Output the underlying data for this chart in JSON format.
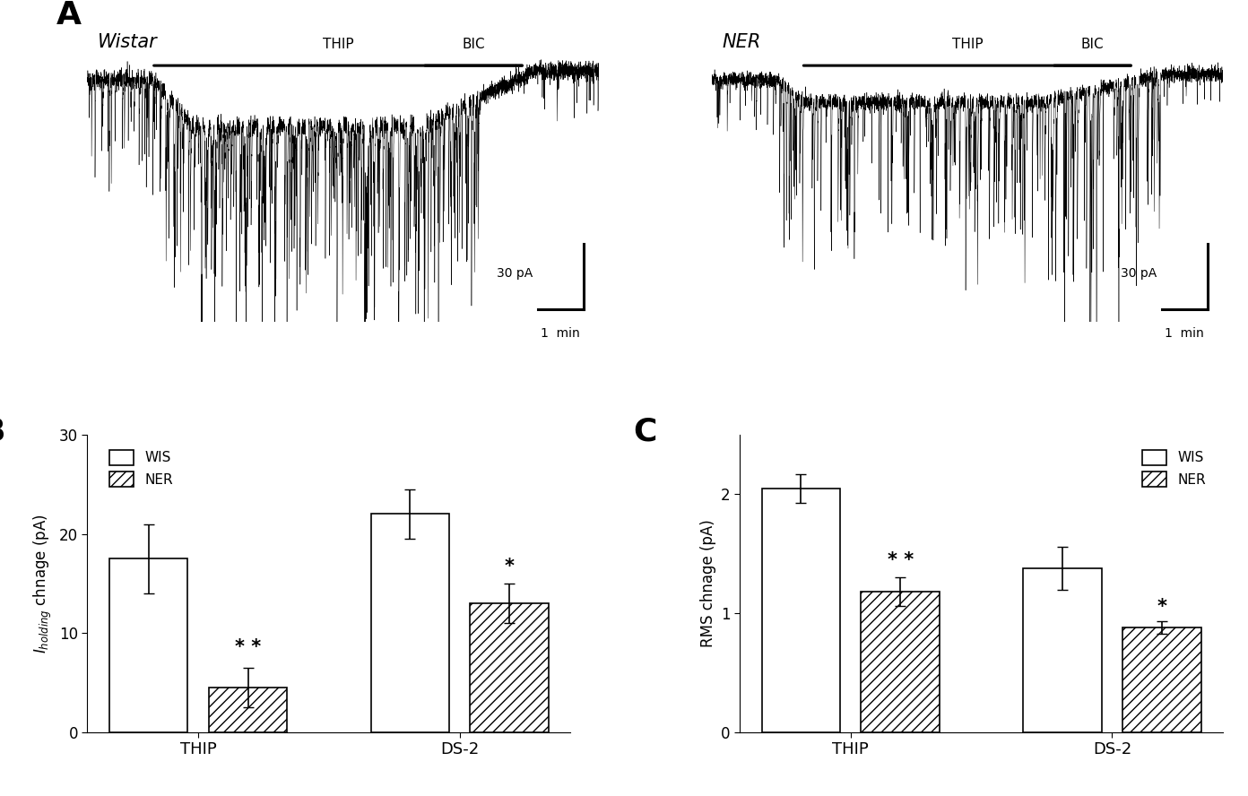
{
  "panel_A_left_label": "Wistar",
  "panel_A_right_label": "NER",
  "panel_A_scalebar_v": "30 pA",
  "panel_A_scalebar_h": "1  min",
  "panel_B_ylabel": "$I_{holding}$ chnage (pA)",
  "panel_B_ylim": [
    0,
    30
  ],
  "panel_B_yticks": [
    0,
    10,
    20,
    30
  ],
  "panel_B_groups": [
    "THIP",
    "DS-2"
  ],
  "panel_B_WIS_values": [
    17.5,
    22.0
  ],
  "panel_B_WIS_errors": [
    3.5,
    2.5
  ],
  "panel_B_NER_values": [
    4.5,
    13.0
  ],
  "panel_B_NER_errors": [
    2.0,
    2.0
  ],
  "panel_B_NER_sig_THIP": "* *",
  "panel_B_NER_sig_DS2": "*",
  "panel_C_ylabel": "RMS chnage (pA)",
  "panel_C_ylim": [
    0,
    2.5
  ],
  "panel_C_yticks": [
    0,
    1.0,
    2.0
  ],
  "panel_C_groups": [
    "THIP",
    "DS-2"
  ],
  "panel_C_WIS_values": [
    2.05,
    1.38
  ],
  "panel_C_WIS_errors": [
    0.12,
    0.18
  ],
  "panel_C_NER_values": [
    1.18,
    0.88
  ],
  "panel_C_NER_errors": [
    0.12,
    0.05
  ],
  "panel_C_NER_sig_THIP": "* *",
  "panel_C_NER_sig_DS2": "*",
  "bar_width": 0.3,
  "bar_color_WIS": "#ffffff",
  "bar_hatch_NER": "///",
  "bar_edgecolor": "#000000",
  "legend_WIS": "WIS",
  "legend_NER": "NER",
  "background_color": "#ffffff"
}
